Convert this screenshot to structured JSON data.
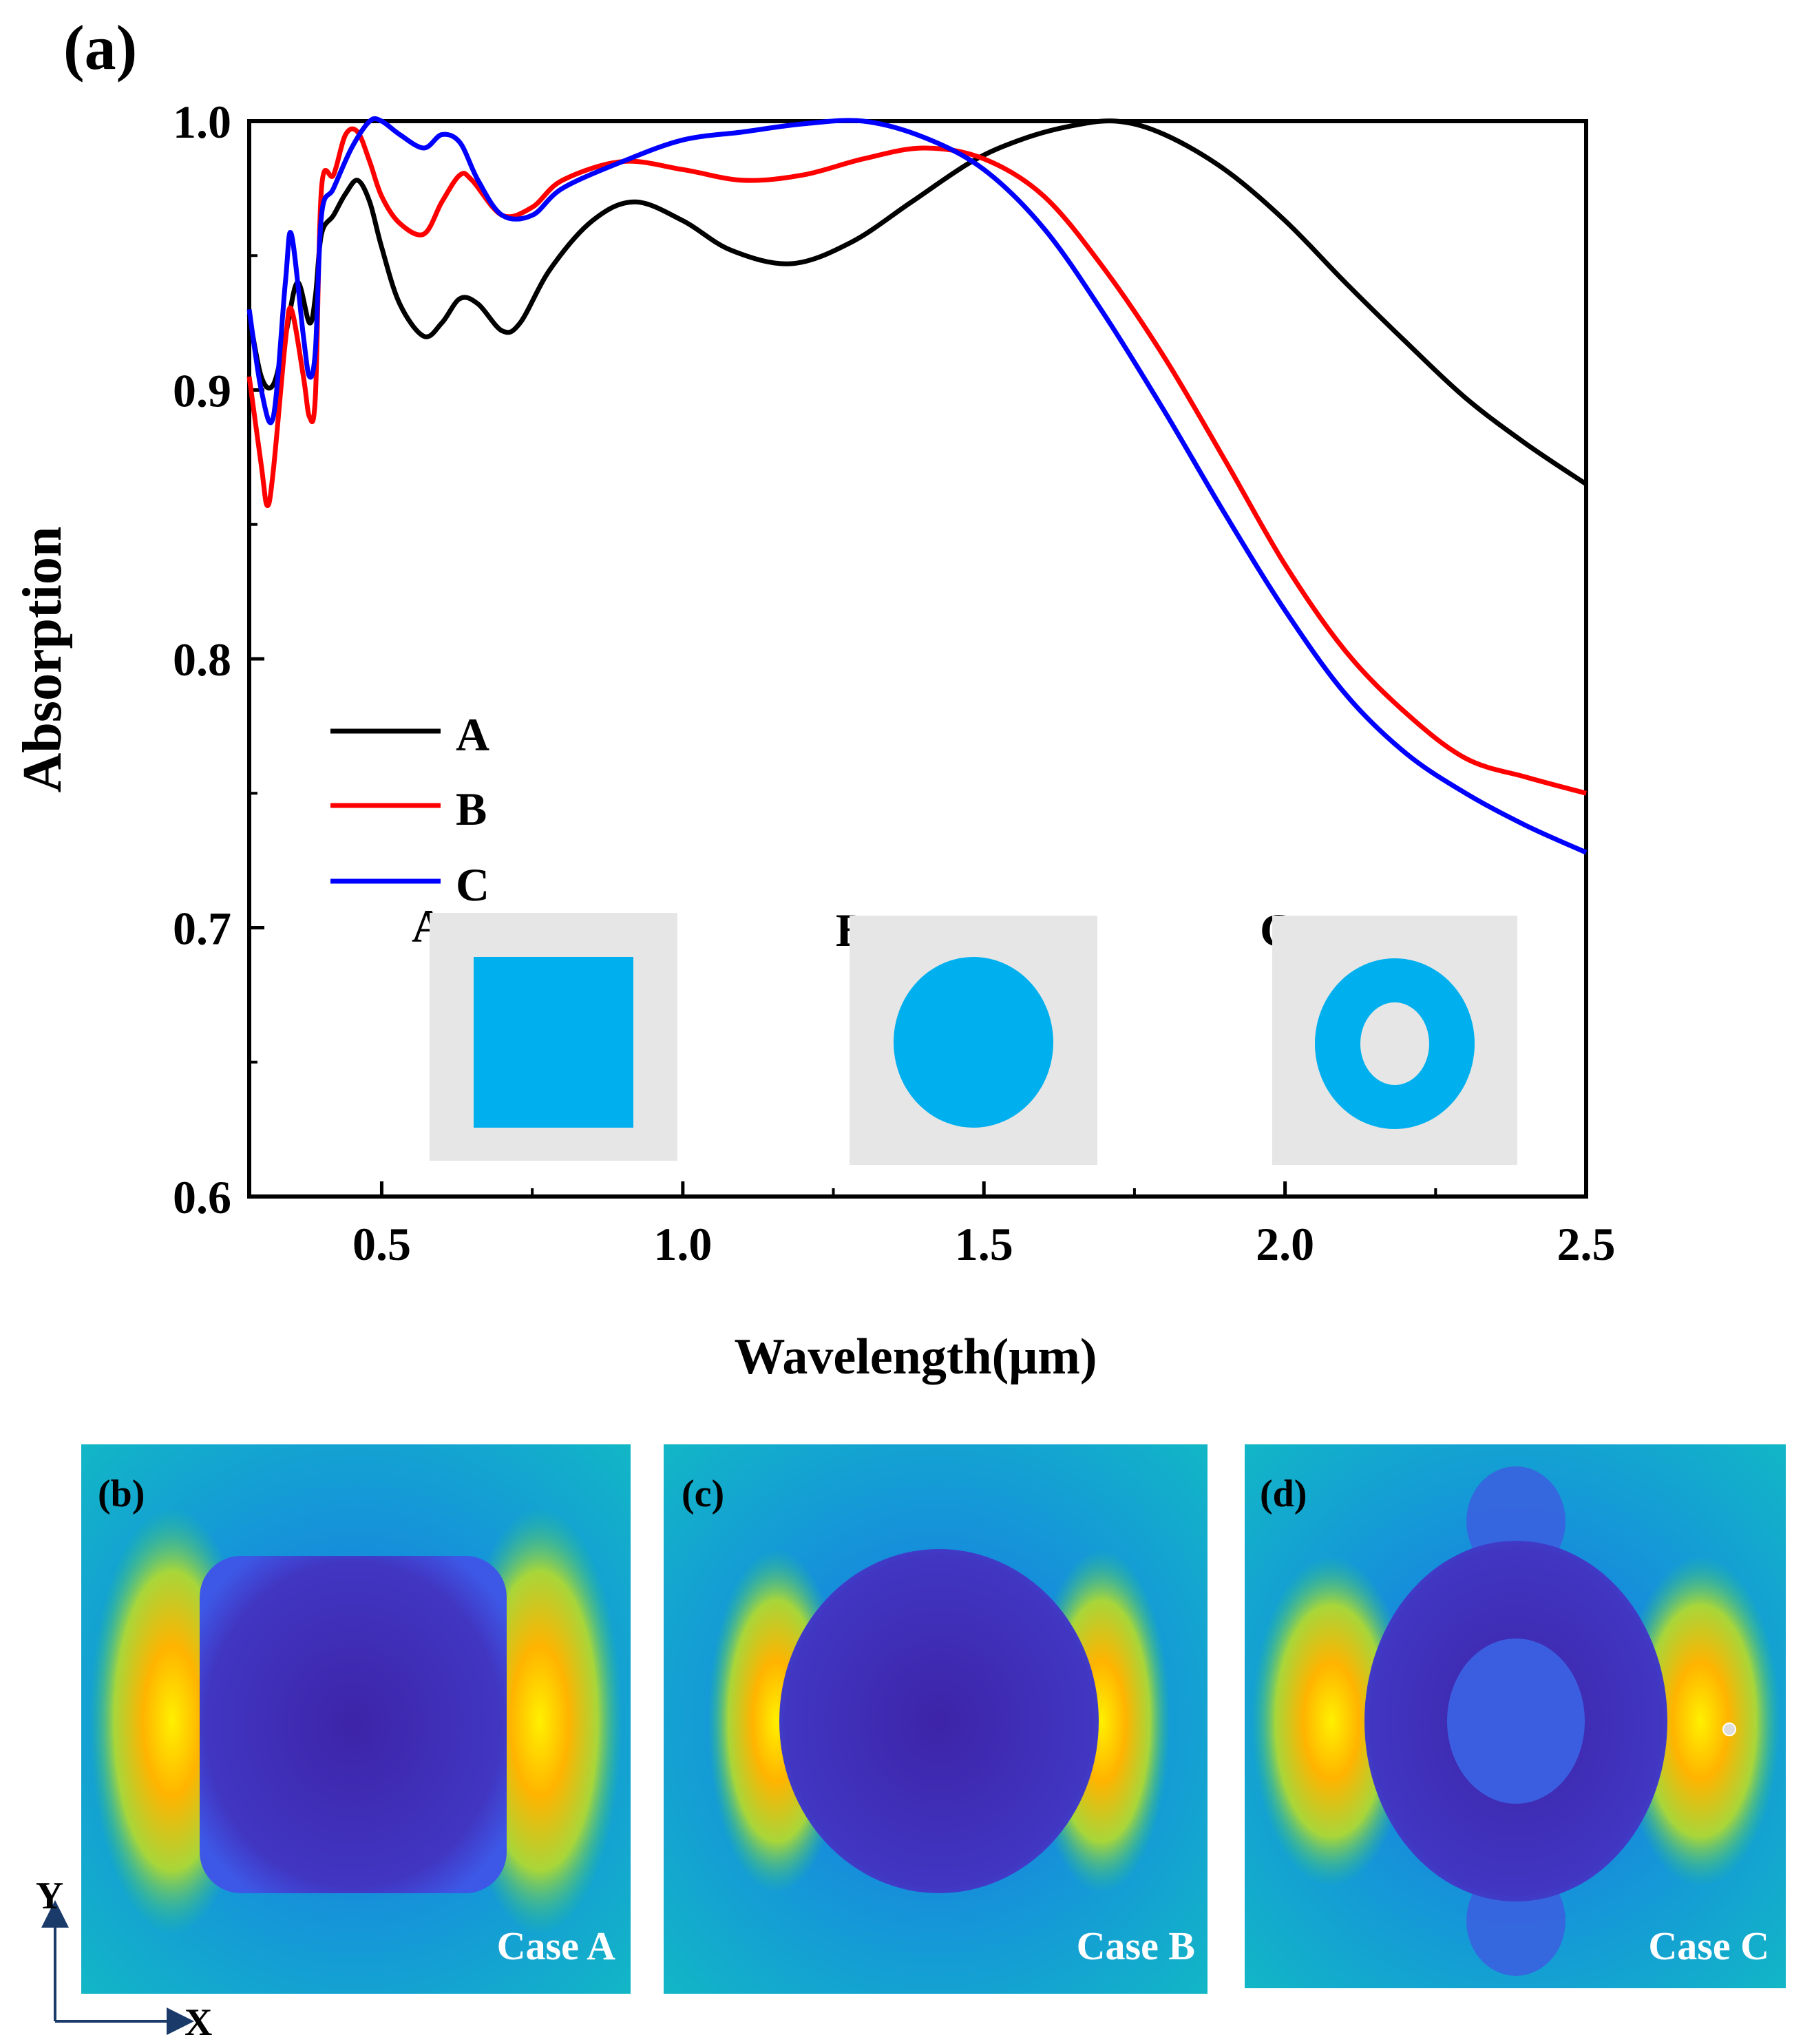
{
  "chart_data": {
    "type": "line",
    "panel_label": "(a)",
    "xlabel": "Wavelength(μm)",
    "ylabel": "Absorption",
    "xlim": [
      0.28,
      2.5
    ],
    "ylim": [
      0.6,
      1.0
    ],
    "x_ticks": [
      "0.5",
      "1.0",
      "1.5",
      "2.0",
      "2.5"
    ],
    "y_ticks": [
      "0.6",
      "0.7",
      "0.8",
      "0.9",
      "1.0"
    ],
    "legend_position": "lower-left",
    "series": [
      {
        "name": "A",
        "color": "#000000",
        "x": [
          0.28,
          0.3,
          0.32,
          0.34,
          0.36,
          0.38,
          0.39,
          0.4,
          0.42,
          0.44,
          0.46,
          0.48,
          0.5,
          0.53,
          0.57,
          0.6,
          0.63,
          0.66,
          0.7,
          0.73,
          0.78,
          0.85,
          0.92,
          1.0,
          1.08,
          1.18,
          1.28,
          1.38,
          1.48,
          1.56,
          1.64,
          1.72,
          1.8,
          1.9,
          2.0,
          2.1,
          2.2,
          2.3,
          2.4,
          2.5
        ],
        "y": [
          0.928,
          0.905,
          0.902,
          0.92,
          0.94,
          0.925,
          0.935,
          0.958,
          0.965,
          0.973,
          0.978,
          0.97,
          0.953,
          0.932,
          0.92,
          0.925,
          0.934,
          0.932,
          0.922,
          0.925,
          0.945,
          0.963,
          0.97,
          0.963,
          0.952,
          0.947,
          0.955,
          0.97,
          0.985,
          0.993,
          0.998,
          1.0,
          0.995,
          0.982,
          0.963,
          0.94,
          0.918,
          0.897,
          0.88,
          0.865
        ]
      },
      {
        "name": "B",
        "color": "#ff0000",
        "x": [
          0.28,
          0.3,
          0.31,
          0.32,
          0.34,
          0.35,
          0.37,
          0.38,
          0.39,
          0.4,
          0.42,
          0.44,
          0.46,
          0.48,
          0.5,
          0.53,
          0.57,
          0.6,
          0.63,
          0.65,
          0.7,
          0.75,
          0.8,
          0.9,
          1.0,
          1.1,
          1.2,
          1.3,
          1.4,
          1.5,
          1.6,
          1.7,
          1.8,
          1.9,
          2.0,
          2.1,
          2.2,
          2.3,
          2.4,
          2.5
        ],
        "y": [
          0.905,
          0.872,
          0.857,
          0.87,
          0.918,
          0.93,
          0.905,
          0.89,
          0.898,
          0.975,
          0.98,
          0.995,
          0.996,
          0.985,
          0.972,
          0.962,
          0.958,
          0.97,
          0.98,
          0.978,
          0.965,
          0.968,
          0.978,
          0.985,
          0.982,
          0.978,
          0.98,
          0.986,
          0.99,
          0.986,
          0.972,
          0.945,
          0.912,
          0.874,
          0.835,
          0.803,
          0.78,
          0.763,
          0.756,
          0.75
        ]
      },
      {
        "name": "C",
        "color": "#0000ff",
        "x": [
          0.28,
          0.3,
          0.32,
          0.34,
          0.35,
          0.37,
          0.38,
          0.39,
          0.4,
          0.42,
          0.45,
          0.48,
          0.5,
          0.53,
          0.57,
          0.6,
          0.63,
          0.66,
          0.7,
          0.75,
          0.8,
          0.9,
          1.0,
          1.1,
          1.2,
          1.3,
          1.4,
          1.5,
          1.6,
          1.7,
          1.8,
          1.9,
          2.0,
          2.1,
          2.2,
          2.3,
          2.4,
          2.5
        ],
        "y": [
          0.93,
          0.9,
          0.89,
          0.94,
          0.958,
          0.92,
          0.905,
          0.915,
          0.965,
          0.975,
          0.99,
          1.0,
          1.0,
          0.995,
          0.99,
          0.995,
          0.992,
          0.978,
          0.965,
          0.965,
          0.975,
          0.985,
          0.993,
          0.996,
          0.999,
          1.0,
          0.994,
          0.982,
          0.96,
          0.928,
          0.892,
          0.854,
          0.818,
          0.787,
          0.765,
          0.75,
          0.738,
          0.728
        ]
      }
    ]
  },
  "insets": [
    {
      "label": "A",
      "shape": "square"
    },
    {
      "label": "B",
      "shape": "circle"
    },
    {
      "label": "C",
      "shape": "ring"
    }
  ],
  "field_maps": [
    {
      "label": "(b)",
      "case": "Case A"
    },
    {
      "label": "(c)",
      "case": "Case B"
    },
    {
      "label": "(d)",
      "case": "Case C"
    }
  ],
  "axes_indicator": {
    "y": "Y",
    "x": "X"
  },
  "colors": {
    "inset_bg": "#e6e6e6",
    "inset_shape": "#00b0ee",
    "field_bg": "#11b0c8",
    "field_inner": "#3a30b0",
    "field_hot": "#ffd500"
  }
}
